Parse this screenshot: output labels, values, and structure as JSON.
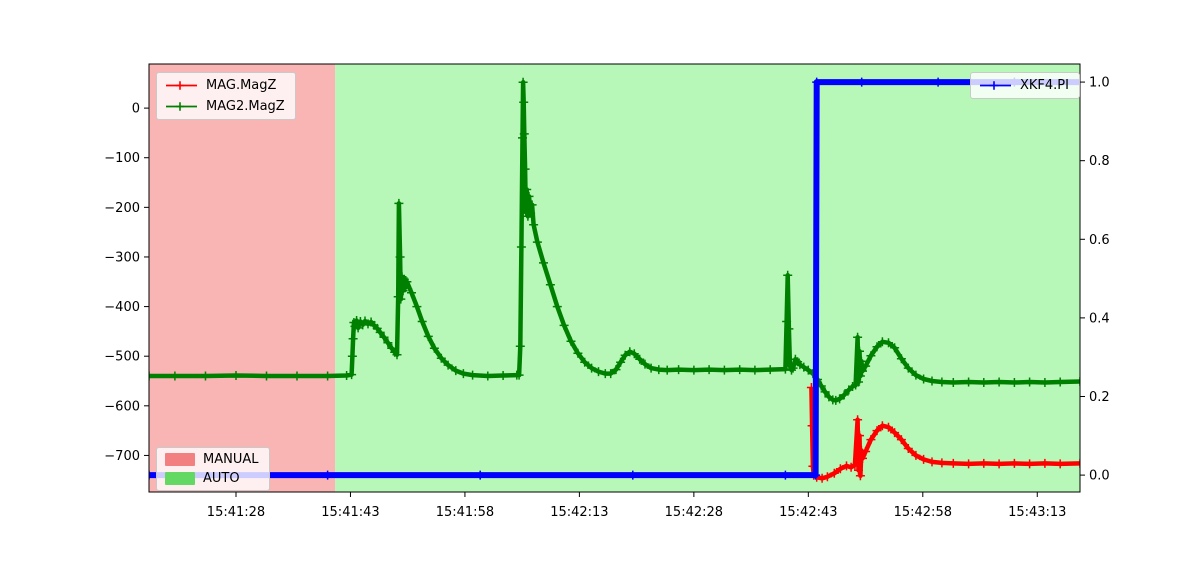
{
  "figure": {
    "background": "#ffffff"
  },
  "legends": {
    "series_left": {
      "items": [
        {
          "label": "MAG.MagZ",
          "color": "#ff0000"
        },
        {
          "label": "MAG2.MagZ",
          "color": "#008000"
        }
      ]
    },
    "series_right": {
      "items": [
        {
          "label": "XKF4.PI",
          "color": "#0000ff"
        }
      ]
    },
    "modes": {
      "items": [
        {
          "label": "MANUAL",
          "color": "#f28080"
        },
        {
          "label": "AUTO",
          "color": "#63d963"
        }
      ]
    }
  },
  "chart_data": {
    "type": "line",
    "title": "",
    "xlabel": "",
    "ylabel": "",
    "x_unit": "seconds after 15:41:00",
    "xlim": [
      16.6,
      138.6
    ],
    "ylim_left": [
      -773.7,
      88.9
    ],
    "ylim_right": [
      -0.043,
      1.046
    ],
    "grid": false,
    "x_ticks": [
      {
        "t": 28,
        "label": "15:41:28"
      },
      {
        "t": 43,
        "label": "15:41:43"
      },
      {
        "t": 58,
        "label": "15:41:58"
      },
      {
        "t": 73,
        "label": "15:42:13"
      },
      {
        "t": 88,
        "label": "15:42:28"
      },
      {
        "t": 103,
        "label": "15:42:43"
      },
      {
        "t": 118,
        "label": "15:42:58"
      },
      {
        "t": 133,
        "label": "15:43:13"
      }
    ],
    "y_ticks_left": [
      {
        "v": 0,
        "label": "0"
      },
      {
        "v": -100,
        "label": "−100"
      },
      {
        "v": -200,
        "label": "−200"
      },
      {
        "v": -300,
        "label": "−300"
      },
      {
        "v": -400,
        "label": "−400"
      },
      {
        "v": -500,
        "label": "−500"
      },
      {
        "v": -600,
        "label": "−600"
      },
      {
        "v": -700,
        "label": "−700"
      }
    ],
    "y_ticks_right": [
      {
        "v": 0.0,
        "label": "0.0"
      },
      {
        "v": 0.2,
        "label": "0.2"
      },
      {
        "v": 0.4,
        "label": "0.4"
      },
      {
        "v": 0.6,
        "label": "0.6"
      },
      {
        "v": 0.8,
        "label": "0.8"
      },
      {
        "v": 1.0,
        "label": "1.0"
      }
    ],
    "background_spans": [
      {
        "label": "MANUAL",
        "from": 16.6,
        "to": 41.0,
        "color": "#f9b4b4"
      },
      {
        "label": "AUTO",
        "from": 41.0,
        "to": 138.6,
        "color": "#b7f7b7"
      }
    ],
    "series": [
      {
        "name": "MAG2.MagZ",
        "axis": "left",
        "color": "#008000",
        "marker": "plus",
        "linewidth": 4.5,
        "points": [
          [
            16.6,
            -540
          ],
          [
            20,
            -540
          ],
          [
            24,
            -540
          ],
          [
            28,
            -539
          ],
          [
            32,
            -540
          ],
          [
            36,
            -540
          ],
          [
            40,
            -540
          ],
          [
            42.5,
            -539
          ],
          [
            43.15,
            -537
          ],
          [
            43.25,
            -500
          ],
          [
            43.35,
            -465
          ],
          [
            43.45,
            -432
          ],
          [
            43.6,
            -440
          ],
          [
            43.8,
            -428
          ],
          [
            44.0,
            -443
          ],
          [
            44.3,
            -430
          ],
          [
            44.6,
            -437
          ],
          [
            44.9,
            -429
          ],
          [
            45.3,
            -435
          ],
          [
            45.7,
            -431
          ],
          [
            46.1,
            -438
          ],
          [
            46.5,
            -444
          ],
          [
            46.9,
            -452
          ],
          [
            47.4,
            -462
          ],
          [
            47.9,
            -473
          ],
          [
            48.4,
            -484
          ],
          [
            48.8,
            -492
          ],
          [
            49.1,
            -497
          ],
          [
            49.25,
            -380
          ],
          [
            49.35,
            -192
          ],
          [
            49.5,
            -300
          ],
          [
            49.6,
            -385
          ],
          [
            49.75,
            -340
          ],
          [
            49.9,
            -368
          ],
          [
            50.05,
            -345
          ],
          [
            50.2,
            -362
          ],
          [
            50.4,
            -350
          ],
          [
            51.0,
            -372
          ],
          [
            51.7,
            -400
          ],
          [
            52.4,
            -430
          ],
          [
            53.2,
            -460
          ],
          [
            54.0,
            -484
          ],
          [
            54.9,
            -504
          ],
          [
            55.8,
            -518
          ],
          [
            56.8,
            -529
          ],
          [
            57.8,
            -535
          ],
          [
            59,
            -538
          ],
          [
            61,
            -540
          ],
          [
            63,
            -539
          ],
          [
            64.8,
            -538
          ],
          [
            65.1,
            -538
          ],
          [
            65.25,
            -480
          ],
          [
            65.4,
            -280
          ],
          [
            65.55,
            -60
          ],
          [
            65.62,
            52
          ],
          [
            65.7,
            12
          ],
          [
            65.78,
            -52
          ],
          [
            65.88,
            -123
          ],
          [
            65.98,
            -210
          ],
          [
            66.1,
            -164
          ],
          [
            66.25,
            -218
          ],
          [
            66.4,
            -178
          ],
          [
            66.6,
            -212
          ],
          [
            66.8,
            -195
          ],
          [
            67.0,
            -235
          ],
          [
            67.5,
            -270
          ],
          [
            68.3,
            -312
          ],
          [
            69.2,
            -356
          ],
          [
            70.1,
            -400
          ],
          [
            71.0,
            -438
          ],
          [
            71.9,
            -470
          ],
          [
            72.8,
            -494
          ],
          [
            73.7,
            -512
          ],
          [
            74.6,
            -524
          ],
          [
            75.5,
            -531
          ],
          [
            76.4,
            -535
          ],
          [
            77.1,
            -535
          ],
          [
            77.8,
            -527
          ],
          [
            78.4,
            -512
          ],
          [
            79.0,
            -498
          ],
          [
            79.6,
            -491
          ],
          [
            80.2,
            -495
          ],
          [
            80.9,
            -506
          ],
          [
            81.6,
            -516
          ],
          [
            82.4,
            -524
          ],
          [
            83.4,
            -527
          ],
          [
            84.5,
            -528
          ],
          [
            86,
            -527
          ],
          [
            88,
            -528
          ],
          [
            90,
            -527
          ],
          [
            92,
            -528
          ],
          [
            94,
            -527
          ],
          [
            96,
            -528
          ],
          [
            98,
            -527
          ],
          [
            100.0,
            -526
          ],
          [
            100.15,
            -430
          ],
          [
            100.3,
            -337
          ],
          [
            100.45,
            -445
          ],
          [
            100.6,
            -520
          ],
          [
            100.8,
            -528
          ],
          [
            101.0,
            -524
          ],
          [
            101.3,
            -506
          ],
          [
            101.6,
            -511
          ],
          [
            101.9,
            -517
          ],
          [
            102.4,
            -522
          ],
          [
            103.0,
            -528
          ],
          [
            103.6,
            -535
          ],
          [
            104.2,
            -547
          ],
          [
            104.7,
            -560
          ],
          [
            105.2,
            -572
          ],
          [
            105.7,
            -582
          ],
          [
            106.2,
            -588
          ],
          [
            106.6,
            -589
          ],
          [
            107.1,
            -586
          ],
          [
            107.7,
            -578
          ],
          [
            108.3,
            -568
          ],
          [
            108.8,
            -561
          ],
          [
            109.2,
            -558
          ],
          [
            109.45,
            -462
          ],
          [
            109.58,
            -552
          ],
          [
            109.7,
            -490
          ],
          [
            109.82,
            -540
          ],
          [
            109.95,
            -510
          ],
          [
            110.1,
            -530
          ],
          [
            110.5,
            -520
          ],
          [
            111.2,
            -499
          ],
          [
            112.0,
            -481
          ],
          [
            112.7,
            -471
          ],
          [
            113.5,
            -473
          ],
          [
            114.3,
            -483
          ],
          [
            115.2,
            -505
          ],
          [
            116.1,
            -524
          ],
          [
            117.1,
            -538
          ],
          [
            118.1,
            -546
          ],
          [
            119.2,
            -550
          ],
          [
            120.5,
            -552
          ],
          [
            122,
            -553
          ],
          [
            124,
            -552
          ],
          [
            126,
            -553
          ],
          [
            128,
            -552
          ],
          [
            130,
            -553
          ],
          [
            132,
            -552
          ],
          [
            134,
            -553
          ],
          [
            136,
            -552
          ],
          [
            138.6,
            -551
          ]
        ]
      },
      {
        "name": "MAG.MagZ",
        "axis": "left",
        "color": "#ff0000",
        "marker": "plus",
        "linewidth": 4.5,
        "points": [
          [
            103.4,
            -563
          ],
          [
            103.5,
            -640
          ],
          [
            103.6,
            -722
          ],
          [
            103.7,
            -740
          ],
          [
            104.1,
            -744
          ],
          [
            104.8,
            -746
          ],
          [
            105.5,
            -743
          ],
          [
            106.4,
            -736
          ],
          [
            107.2,
            -727
          ],
          [
            108.0,
            -721
          ],
          [
            108.6,
            -724
          ],
          [
            109.1,
            -719
          ],
          [
            109.45,
            -628
          ],
          [
            109.58,
            -730
          ],
          [
            109.7,
            -660
          ],
          [
            109.82,
            -741
          ],
          [
            109.95,
            -690
          ],
          [
            110.1,
            -706
          ],
          [
            110.5,
            -692
          ],
          [
            111.2,
            -668
          ],
          [
            112.0,
            -650
          ],
          [
            112.7,
            -640
          ],
          [
            113.5,
            -643
          ],
          [
            114.3,
            -654
          ],
          [
            115.2,
            -668
          ],
          [
            116.1,
            -686
          ],
          [
            117.1,
            -700
          ],
          [
            118.1,
            -708
          ],
          [
            119.2,
            -713
          ],
          [
            120.5,
            -715
          ],
          [
            122,
            -716
          ],
          [
            124,
            -717
          ],
          [
            126,
            -716
          ],
          [
            128,
            -717
          ],
          [
            130,
            -716
          ],
          [
            132,
            -717
          ],
          [
            134,
            -716
          ],
          [
            136,
            -717
          ],
          [
            138.6,
            -716
          ]
        ]
      },
      {
        "name": "XKF4.PI",
        "axis": "right",
        "color": "#0000ff",
        "marker": "plus",
        "linewidth": 6,
        "points": [
          [
            16.6,
            0
          ],
          [
            40,
            0
          ],
          [
            60,
            0
          ],
          [
            80,
            0
          ],
          [
            100,
            0
          ],
          [
            103.95,
            0
          ],
          [
            104.1,
            1
          ],
          [
            110,
            1
          ],
          [
            120,
            1
          ],
          [
            130,
            1
          ],
          [
            138.6,
            1
          ]
        ]
      }
    ],
    "legend_positions": {
      "series_left": "upper left",
      "series_right": "upper right",
      "modes": "lower left"
    }
  }
}
